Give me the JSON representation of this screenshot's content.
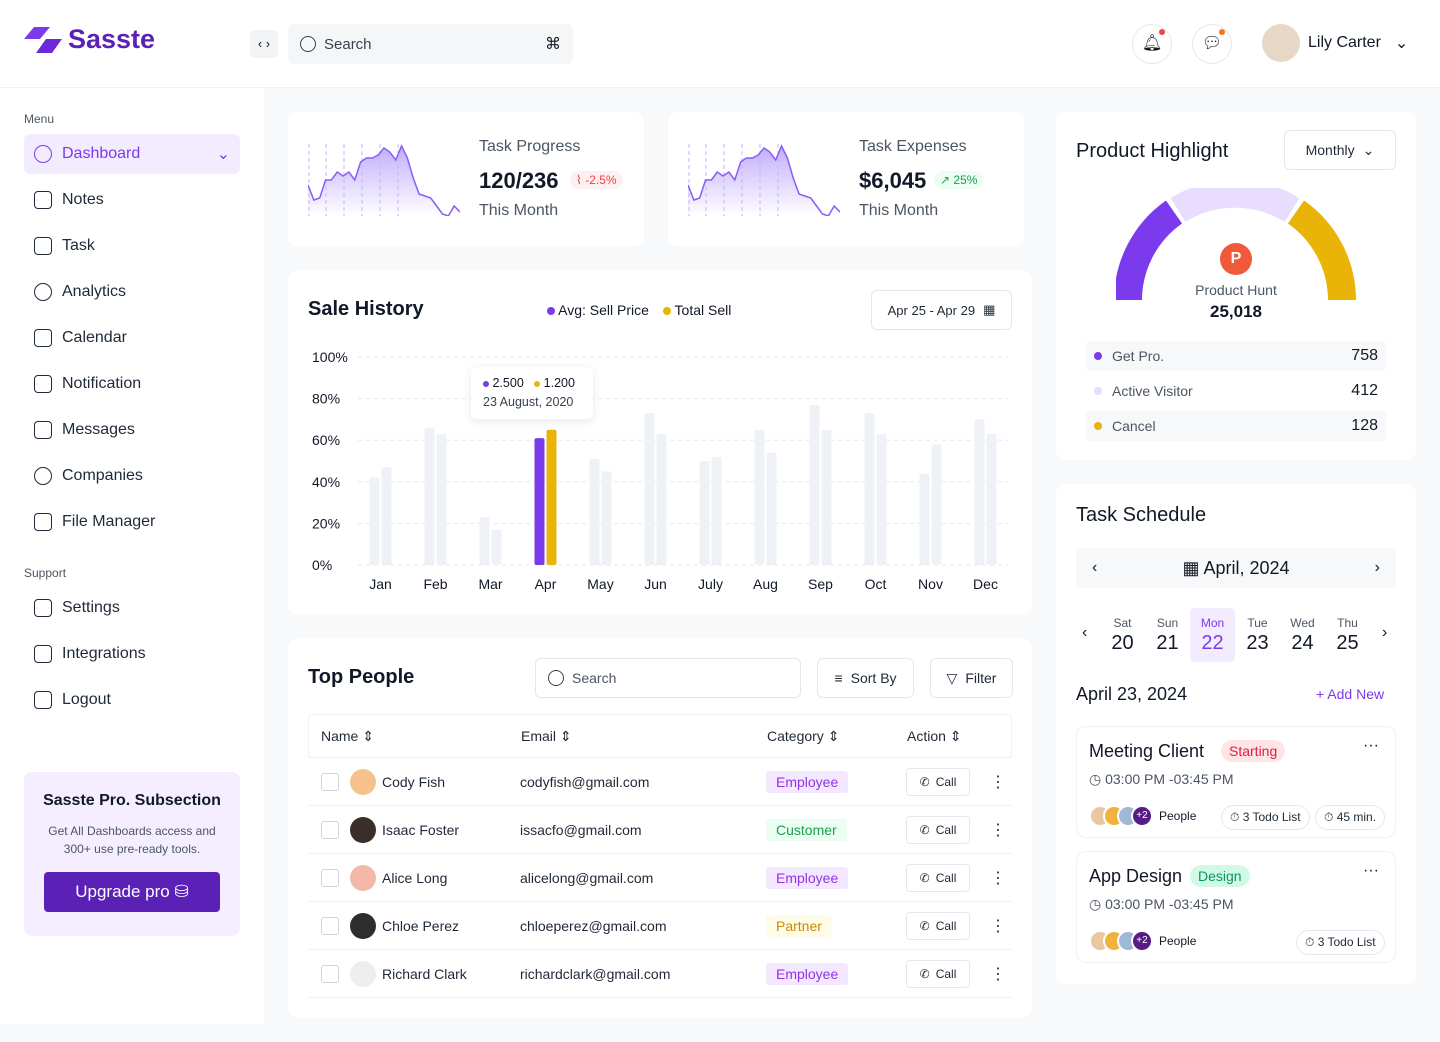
{
  "app": {
    "name": "Sasste"
  },
  "header": {
    "search_placeholder": "Search",
    "user_name": "Lily Carter"
  },
  "sidebar": {
    "menu_label": "Menu",
    "items": [
      {
        "label": "Dashboard",
        "icon": "pie-icon"
      },
      {
        "label": "Notes",
        "icon": "notes-icon"
      },
      {
        "label": "Task",
        "icon": "task-icon"
      },
      {
        "label": "Analytics",
        "icon": "chart-icon"
      },
      {
        "label": "Calendar",
        "icon": "calendar-icon"
      },
      {
        "label": "Notification",
        "icon": "bell-icon"
      },
      {
        "label": "Messages",
        "icon": "message-icon"
      },
      {
        "label": "Companies",
        "icon": "pie-icon"
      },
      {
        "label": "File Manager",
        "icon": "folder-icon"
      }
    ],
    "support_label": "Support",
    "support": [
      {
        "label": "Settings"
      },
      {
        "label": "Integrations"
      },
      {
        "label": "Logout"
      }
    ],
    "promo": {
      "title": "Sasste Pro. Subsection",
      "text": "Get All Dashboards access and 300+ use pre-ready tools.",
      "button": "Upgrade pro"
    }
  },
  "stats": [
    {
      "title": "Task Progress",
      "value": "120/236",
      "change": "-2.5%",
      "trend": "down",
      "sub": "This Month"
    },
    {
      "title": "Task Expenses",
      "value": "$6,045",
      "change": "25%",
      "trend": "up",
      "sub": "This Month"
    }
  ],
  "sale_history": {
    "title": "Sale History",
    "legend": [
      "Avg: Sell Price",
      "Total Sell"
    ],
    "date_range": "Apr 25 - Apr 29",
    "tooltip": {
      "a": "2.500",
      "b": "1.200",
      "date": "23 August, 2020"
    }
  },
  "chart_data": {
    "type": "bar",
    "categories": [
      "Jan",
      "Feb",
      "Mar",
      "Apr",
      "May",
      "Jun",
      "July",
      "Aug",
      "Sep",
      "Oct",
      "Nov",
      "Dec"
    ],
    "yticks": [
      "100%",
      "80%",
      "60%",
      "40%",
      "20%",
      "0%"
    ],
    "ylim": [
      0,
      100
    ],
    "highlight": "Apr",
    "colors": {
      "a": "#7c3aed",
      "b": "#eab308",
      "muted": "#eef2f7"
    },
    "series": [
      {
        "name": "Avg: Sell Price",
        "values": [
          42,
          66,
          23,
          61,
          51,
          73,
          50,
          65,
          77,
          73,
          44,
          70
        ]
      },
      {
        "name": "Total Sell",
        "values": [
          47,
          63,
          17,
          65,
          45,
          63,
          52,
          54,
          65,
          63,
          58,
          63
        ]
      }
    ]
  },
  "people": {
    "title": "Top People",
    "search_placeholder": "Search",
    "sort": "Sort By",
    "filter": "Filter",
    "columns": [
      "Name",
      "Email",
      "Category",
      "Action"
    ],
    "call": "Call",
    "rows": [
      {
        "name": "Cody Fish",
        "email": "codyfish@gmail.com",
        "category": "Employee"
      },
      {
        "name": "Isaac Foster",
        "email": "issacfo@gmail.com",
        "category": "Customer"
      },
      {
        "name": "Alice Long",
        "email": "alicelong@gmail.com",
        "category": "Employee"
      },
      {
        "name": "Chloe Perez",
        "email": "chloeperez@gmail.com",
        "category": "Partner"
      },
      {
        "name": "Richard Clark",
        "email": "richardclark@gmail.com",
        "category": "Employee"
      }
    ]
  },
  "product": {
    "title": "Product Highlight",
    "period": "Monthly",
    "center_label": "Product Hunt",
    "center_value": "25,018",
    "items": [
      {
        "label": "Get Pro.",
        "value": "758",
        "color": "#7c3aed"
      },
      {
        "label": "Active Visitor",
        "value": "412",
        "color": "#e9ddff"
      },
      {
        "label": "Cancel",
        "value": "128",
        "color": "#eab308"
      }
    ]
  },
  "schedule": {
    "title": "Task Schedule",
    "month": "April, 2024",
    "days": [
      {
        "d": "Sat",
        "n": "20"
      },
      {
        "d": "Sun",
        "n": "21"
      },
      {
        "d": "Mon",
        "n": "22"
      },
      {
        "d": "Tue",
        "n": "23"
      },
      {
        "d": "Wed",
        "n": "24"
      },
      {
        "d": "Thu",
        "n": "25"
      }
    ],
    "date": "April 23, 2024",
    "add": "Add New",
    "tasks": [
      {
        "title": "Meeting Client",
        "tag": "Starting",
        "time": "03:00 PM -03:45 PM",
        "people": "+2",
        "people_label": "People",
        "todo": "3 Todo List",
        "duration": "45 min."
      },
      {
        "title": "App Design",
        "tag": "Design",
        "time": "03:00 PM -03:45 PM",
        "people": "+2",
        "people_label": "People",
        "todo": "3 Todo List"
      }
    ]
  }
}
